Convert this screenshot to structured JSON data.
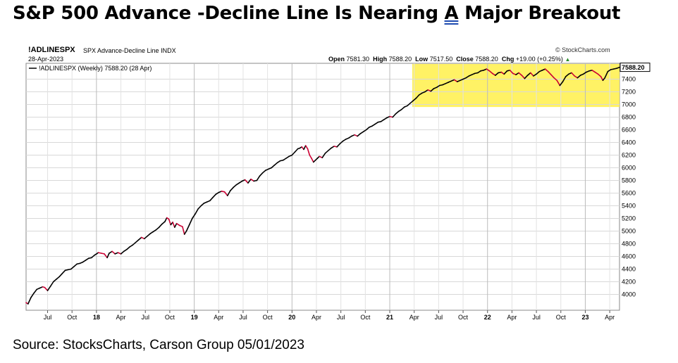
{
  "headline": {
    "pre": "S&P 500 Advance -Decline Line Is Nearing ",
    "underlined": "A",
    "post": " Major Breakout"
  },
  "header": {
    "symbol": "!ADLINESPX",
    "description": "SPX Advance-Decline Line  INDX",
    "date": "28-Apr-2023",
    "credit": "© StockCharts.com",
    "open_label": "Open",
    "open_value": "7581.30",
    "high_label": "High",
    "high_value": "7588.20",
    "low_label": "Low",
    "low_value": "7517.50",
    "close_label": "Close",
    "close_value": "7588.20",
    "chg_label": "Chg",
    "chg_value": "+19.00 (+0.25%)",
    "chg_marker": "▲"
  },
  "source": "Source: StocksCharts, Carson Group 05/01/2023",
  "chart_data": {
    "type": "line",
    "title": "!ADLINESPX  SPX Advance-Decline Line  INDX",
    "legend": "!ADLINESPX (Weekly) 7588.20 (28 Apr)",
    "legend_placement": "top-left",
    "grid": true,
    "last_value_label": "7588.20",
    "y_axis_side": "right",
    "ylim": [
      3750,
      7650
    ],
    "y_ticks": [
      4000,
      4200,
      4400,
      4600,
      4800,
      5000,
      5200,
      5400,
      5600,
      5800,
      6000,
      6200,
      6400,
      6600,
      6800,
      7000,
      7200,
      7400
    ],
    "x_range": [
      2017.28,
      2023.35
    ],
    "x_ticks": [
      {
        "label": "Jul",
        "x": 2017.5,
        "bold": false
      },
      {
        "label": "Oct",
        "x": 2017.75,
        "bold": false
      },
      {
        "label": "18",
        "x": 2018.0,
        "bold": true
      },
      {
        "label": "Apr",
        "x": 2018.25,
        "bold": false
      },
      {
        "label": "Jul",
        "x": 2018.5,
        "bold": false
      },
      {
        "label": "Oct",
        "x": 2018.75,
        "bold": false
      },
      {
        "label": "19",
        "x": 2019.0,
        "bold": true
      },
      {
        "label": "Apr",
        "x": 2019.25,
        "bold": false
      },
      {
        "label": "Jul",
        "x": 2019.5,
        "bold": false
      },
      {
        "label": "Oct",
        "x": 2019.75,
        "bold": false
      },
      {
        "label": "20",
        "x": 2020.0,
        "bold": true
      },
      {
        "label": "Apr",
        "x": 2020.25,
        "bold": false
      },
      {
        "label": "Jul",
        "x": 2020.5,
        "bold": false
      },
      {
        "label": "Oct",
        "x": 2020.75,
        "bold": false
      },
      {
        "label": "21",
        "x": 2021.0,
        "bold": true
      },
      {
        "label": "Apr",
        "x": 2021.25,
        "bold": false
      },
      {
        "label": "Jul",
        "x": 2021.5,
        "bold": false
      },
      {
        "label": "Oct",
        "x": 2021.75,
        "bold": false
      },
      {
        "label": "22",
        "x": 2022.0,
        "bold": true
      },
      {
        "label": "Apr",
        "x": 2022.25,
        "bold": false
      },
      {
        "label": "Jul",
        "x": 2022.5,
        "bold": false
      },
      {
        "label": "Oct",
        "x": 2022.75,
        "bold": false
      },
      {
        "label": "23",
        "x": 2023.0,
        "bold": true
      },
      {
        "label": "Apr",
        "x": 2023.25,
        "bold": false
      }
    ],
    "highlight": {
      "x": [
        2021.23,
        2023.35
      ],
      "y": [
        6960,
        7640
      ],
      "color": "#fff04a"
    },
    "series": [
      {
        "color": "#000000",
        "down_color": "#cc0033",
        "points": [
          [
            2017.28,
            3870
          ],
          [
            2017.3,
            3850
          ],
          [
            2017.33,
            3950
          ],
          [
            2017.36,
            4020
          ],
          [
            2017.39,
            4080
          ],
          [
            2017.42,
            4100
          ],
          [
            2017.45,
            4120
          ],
          [
            2017.47,
            4110
          ],
          [
            2017.5,
            4060
          ],
          [
            2017.53,
            4130
          ],
          [
            2017.56,
            4200
          ],
          [
            2017.59,
            4240
          ],
          [
            2017.62,
            4280
          ],
          [
            2017.65,
            4330
          ],
          [
            2017.68,
            4380
          ],
          [
            2017.71,
            4390
          ],
          [
            2017.74,
            4400
          ],
          [
            2017.77,
            4440
          ],
          [
            2017.8,
            4480
          ],
          [
            2017.83,
            4490
          ],
          [
            2017.86,
            4510
          ],
          [
            2017.89,
            4540
          ],
          [
            2017.92,
            4570
          ],
          [
            2017.95,
            4580
          ],
          [
            2017.98,
            4620
          ],
          [
            2018.0,
            4640
          ],
          [
            2018.02,
            4660
          ],
          [
            2018.05,
            4650
          ],
          [
            2018.08,
            4640
          ],
          [
            2018.11,
            4580
          ],
          [
            2018.13,
            4650
          ],
          [
            2018.16,
            4680
          ],
          [
            2018.19,
            4640
          ],
          [
            2018.22,
            4660
          ],
          [
            2018.25,
            4640
          ],
          [
            2018.28,
            4680
          ],
          [
            2018.31,
            4710
          ],
          [
            2018.34,
            4750
          ],
          [
            2018.37,
            4780
          ],
          [
            2018.4,
            4820
          ],
          [
            2018.43,
            4860
          ],
          [
            2018.46,
            4900
          ],
          [
            2018.49,
            4880
          ],
          [
            2018.52,
            4920
          ],
          [
            2018.55,
            4960
          ],
          [
            2018.58,
            4990
          ],
          [
            2018.61,
            5020
          ],
          [
            2018.64,
            5060
          ],
          [
            2018.67,
            5110
          ],
          [
            2018.7,
            5150
          ],
          [
            2018.72,
            5210
          ],
          [
            2018.74,
            5190
          ],
          [
            2018.76,
            5100
          ],
          [
            2018.78,
            5140
          ],
          [
            2018.8,
            5060
          ],
          [
            2018.82,
            5120
          ],
          [
            2018.85,
            5090
          ],
          [
            2018.88,
            5070
          ],
          [
            2018.9,
            4950
          ],
          [
            2018.92,
            5000
          ],
          [
            2018.95,
            5100
          ],
          [
            2018.98,
            5200
          ],
          [
            2019.01,
            5270
          ],
          [
            2019.04,
            5350
          ],
          [
            2019.07,
            5400
          ],
          [
            2019.1,
            5440
          ],
          [
            2019.13,
            5460
          ],
          [
            2019.16,
            5480
          ],
          [
            2019.19,
            5530
          ],
          [
            2019.22,
            5580
          ],
          [
            2019.25,
            5610
          ],
          [
            2019.28,
            5630
          ],
          [
            2019.31,
            5620
          ],
          [
            2019.34,
            5560
          ],
          [
            2019.37,
            5640
          ],
          [
            2019.4,
            5690
          ],
          [
            2019.43,
            5730
          ],
          [
            2019.46,
            5760
          ],
          [
            2019.49,
            5790
          ],
          [
            2019.52,
            5810
          ],
          [
            2019.55,
            5760
          ],
          [
            2019.58,
            5820
          ],
          [
            2019.61,
            5790
          ],
          [
            2019.64,
            5800
          ],
          [
            2019.67,
            5870
          ],
          [
            2019.7,
            5920
          ],
          [
            2019.73,
            5960
          ],
          [
            2019.76,
            5980
          ],
          [
            2019.79,
            6000
          ],
          [
            2019.82,
            6040
          ],
          [
            2019.85,
            6080
          ],
          [
            2019.88,
            6110
          ],
          [
            2019.91,
            6120
          ],
          [
            2019.94,
            6150
          ],
          [
            2019.97,
            6180
          ],
          [
            2020.0,
            6200
          ],
          [
            2020.03,
            6250
          ],
          [
            2020.06,
            6300
          ],
          [
            2020.08,
            6310
          ],
          [
            2020.1,
            6330
          ],
          [
            2020.12,
            6290
          ],
          [
            2020.14,
            6350
          ],
          [
            2020.16,
            6300
          ],
          [
            2020.18,
            6200
          ],
          [
            2020.2,
            6150
          ],
          [
            2020.22,
            6090
          ],
          [
            2020.24,
            6120
          ],
          [
            2020.26,
            6150
          ],
          [
            2020.28,
            6180
          ],
          [
            2020.31,
            6160
          ],
          [
            2020.34,
            6230
          ],
          [
            2020.37,
            6270
          ],
          [
            2020.4,
            6310
          ],
          [
            2020.43,
            6340
          ],
          [
            2020.46,
            6330
          ],
          [
            2020.49,
            6380
          ],
          [
            2020.52,
            6420
          ],
          [
            2020.55,
            6450
          ],
          [
            2020.58,
            6470
          ],
          [
            2020.61,
            6500
          ],
          [
            2020.64,
            6520
          ],
          [
            2020.67,
            6500
          ],
          [
            2020.7,
            6540
          ],
          [
            2020.73,
            6570
          ],
          [
            2020.76,
            6600
          ],
          [
            2020.79,
            6640
          ],
          [
            2020.82,
            6660
          ],
          [
            2020.85,
            6690
          ],
          [
            2020.88,
            6720
          ],
          [
            2020.91,
            6730
          ],
          [
            2020.94,
            6760
          ],
          [
            2020.97,
            6790
          ],
          [
            2021.0,
            6810
          ],
          [
            2021.03,
            6800
          ],
          [
            2021.06,
            6850
          ],
          [
            2021.09,
            6890
          ],
          [
            2021.12,
            6920
          ],
          [
            2021.15,
            6960
          ],
          [
            2021.18,
            6980
          ],
          [
            2021.21,
            7020
          ],
          [
            2021.24,
            7060
          ],
          [
            2021.27,
            7100
          ],
          [
            2021.3,
            7150
          ],
          [
            2021.33,
            7180
          ],
          [
            2021.36,
            7200
          ],
          [
            2021.39,
            7230
          ],
          [
            2021.42,
            7210
          ],
          [
            2021.45,
            7250
          ],
          [
            2021.48,
            7270
          ],
          [
            2021.51,
            7300
          ],
          [
            2021.54,
            7310
          ],
          [
            2021.57,
            7330
          ],
          [
            2021.6,
            7350
          ],
          [
            2021.63,
            7370
          ],
          [
            2021.66,
            7390
          ],
          [
            2021.69,
            7360
          ],
          [
            2021.72,
            7380
          ],
          [
            2021.75,
            7400
          ],
          [
            2021.78,
            7420
          ],
          [
            2021.81,
            7450
          ],
          [
            2021.84,
            7470
          ],
          [
            2021.87,
            7490
          ],
          [
            2021.9,
            7500
          ],
          [
            2021.93,
            7530
          ],
          [
            2021.96,
            7540
          ],
          [
            2021.99,
            7560
          ],
          [
            2022.02,
            7530
          ],
          [
            2022.05,
            7490
          ],
          [
            2022.08,
            7460
          ],
          [
            2022.11,
            7500
          ],
          [
            2022.14,
            7510
          ],
          [
            2022.17,
            7480
          ],
          [
            2022.2,
            7530
          ],
          [
            2022.23,
            7540
          ],
          [
            2022.26,
            7490
          ],
          [
            2022.29,
            7470
          ],
          [
            2022.32,
            7500
          ],
          [
            2022.35,
            7460
          ],
          [
            2022.38,
            7410
          ],
          [
            2022.41,
            7460
          ],
          [
            2022.44,
            7500
          ],
          [
            2022.47,
            7450
          ],
          [
            2022.5,
            7480
          ],
          [
            2022.53,
            7520
          ],
          [
            2022.56,
            7540
          ],
          [
            2022.59,
            7560
          ],
          [
            2022.62,
            7520
          ],
          [
            2022.65,
            7470
          ],
          [
            2022.68,
            7420
          ],
          [
            2022.71,
            7380
          ],
          [
            2022.74,
            7300
          ],
          [
            2022.77,
            7360
          ],
          [
            2022.8,
            7440
          ],
          [
            2022.83,
            7480
          ],
          [
            2022.86,
            7500
          ],
          [
            2022.89,
            7450
          ],
          [
            2022.92,
            7420
          ],
          [
            2022.95,
            7460
          ],
          [
            2022.98,
            7480
          ],
          [
            2023.01,
            7510
          ],
          [
            2023.04,
            7530
          ],
          [
            2023.07,
            7540
          ],
          [
            2023.1,
            7510
          ],
          [
            2023.13,
            7480
          ],
          [
            2023.16,
            7440
          ],
          [
            2023.18,
            7380
          ],
          [
            2023.2,
            7420
          ],
          [
            2023.23,
            7520
          ],
          [
            2023.26,
            7550
          ],
          [
            2023.29,
            7560
          ],
          [
            2023.32,
            7570
          ],
          [
            2023.35,
            7588.2
          ]
        ]
      }
    ]
  }
}
